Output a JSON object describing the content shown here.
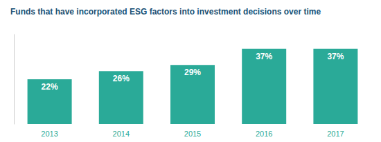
{
  "chart_data": {
    "type": "bar",
    "title": "Funds that have incorporated ESG factors into investment decisions over time",
    "categories": [
      "2013",
      "2014",
      "2015",
      "2016",
      "2017"
    ],
    "values": [
      22,
      26,
      29,
      37,
      37
    ],
    "value_labels": [
      "22%",
      "26%",
      "29%",
      "37%",
      "37%"
    ],
    "data_labels": true,
    "color": "#2aaa98",
    "ylim": [
      0,
      44
    ],
    "tick_labels": "x",
    "grid": false
  }
}
